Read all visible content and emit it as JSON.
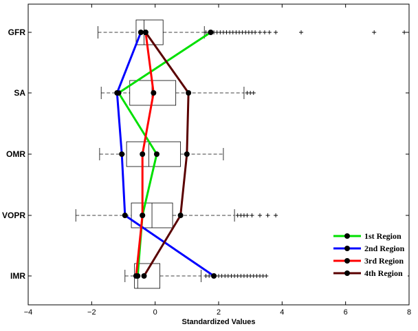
{
  "chart_data": {
    "type": "boxplot-with-lines",
    "xlabel": "Standardized Values",
    "xlim": [
      -4,
      8
    ],
    "x_ticks": [
      -4,
      -2,
      0,
      2,
      4,
      6,
      8
    ],
    "x_tick_labels": [
      "−4",
      "−2",
      "0",
      "2",
      "4",
      "6",
      "8"
    ],
    "categories": [
      "GFR",
      "SA",
      "OMR",
      "VOPR",
      "IMR"
    ],
    "boxes": [
      {
        "category": "GFR",
        "whisker_low": -1.8,
        "q1": -0.6,
        "median": -0.35,
        "q3": 0.25,
        "whisker_high": 1.55,
        "outliers": [
          1.6,
          1.7,
          1.75,
          1.85,
          1.95,
          2.05,
          2.15,
          2.25,
          2.35,
          2.45,
          2.55,
          2.65,
          2.75,
          2.85,
          2.95,
          3.05,
          3.15,
          3.3,
          3.45,
          3.6,
          3.8,
          4.6,
          6.9,
          7.85
        ]
      },
      {
        "category": "SA",
        "whisker_low": -1.7,
        "q1": -0.8,
        "median": -0.1,
        "q3": 0.65,
        "whisker_high": 2.8,
        "outliers": [
          2.9,
          3.0,
          3.1
        ]
      },
      {
        "category": "OMR",
        "whisker_low": -1.75,
        "q1": -0.9,
        "median": -0.2,
        "q3": 0.8,
        "whisker_high": 2.15,
        "outliers": []
      },
      {
        "category": "VOPR",
        "whisker_low": -2.5,
        "q1": -0.75,
        "median": -0.1,
        "q3": 0.55,
        "whisker_high": 2.5,
        "outliers": [
          2.6,
          2.7,
          2.8,
          2.9,
          3.05,
          3.3,
          3.55,
          3.8
        ]
      },
      {
        "category": "IMR",
        "whisker_low": -0.95,
        "q1": -0.65,
        "median": -0.55,
        "q3": 0.15,
        "whisker_high": 1.45,
        "outliers": [
          1.6,
          1.7,
          1.8,
          1.9,
          2.0,
          2.1,
          2.2,
          2.3,
          2.4,
          2.5,
          2.6,
          2.7,
          2.8,
          2.9,
          3.0,
          3.1,
          3.2,
          3.3,
          3.4,
          3.5
        ]
      }
    ],
    "series": [
      {
        "name": "1st Region",
        "color": "#00e000",
        "values": [
          1.75,
          -1.15,
          0.05,
          -0.4,
          -0.55
        ]
      },
      {
        "name": "2nd Region",
        "color": "#0000ff",
        "values": [
          -0.45,
          -1.2,
          -1.05,
          -0.95,
          1.85
        ]
      },
      {
        "name": "3rd Region",
        "color": "#ff0000",
        "values": [
          -0.3,
          -0.05,
          -0.4,
          -0.4,
          -0.6
        ]
      },
      {
        "name": "4th Region",
        "color": "#5a0000",
        "values": [
          -0.3,
          1.05,
          1.0,
          0.8,
          -0.35
        ]
      }
    ],
    "legend_position": "bottom-right",
    "grid": false
  }
}
